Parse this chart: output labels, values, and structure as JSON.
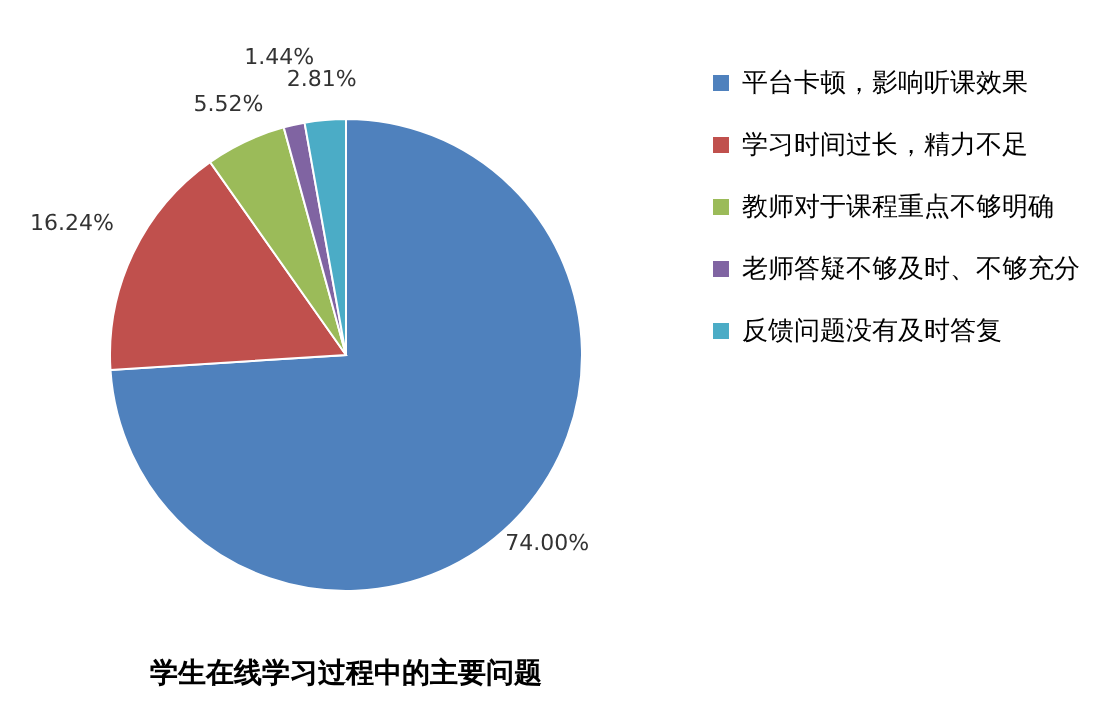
{
  "chart_data": {
    "type": "pie",
    "title": "学生在线学习过程中的主要问题",
    "categories": [
      "平台卡顿，影响听课效果",
      "学习时间过长，精力不足",
      "教师对于课程重点不够明确",
      "老师答疑不够及时、不够充分",
      "反馈问题没有及时答复"
    ],
    "values": [
      74.0,
      16.24,
      5.52,
      1.44,
      2.81
    ],
    "colors": [
      "#4f81bd",
      "#c0504d",
      "#9bbb59",
      "#8064a2",
      "#4bacc6"
    ],
    "value_labels": [
      "74.00%",
      "16.24%",
      "5.52%",
      "1.44%",
      "2.81%"
    ],
    "legend": "right"
  }
}
